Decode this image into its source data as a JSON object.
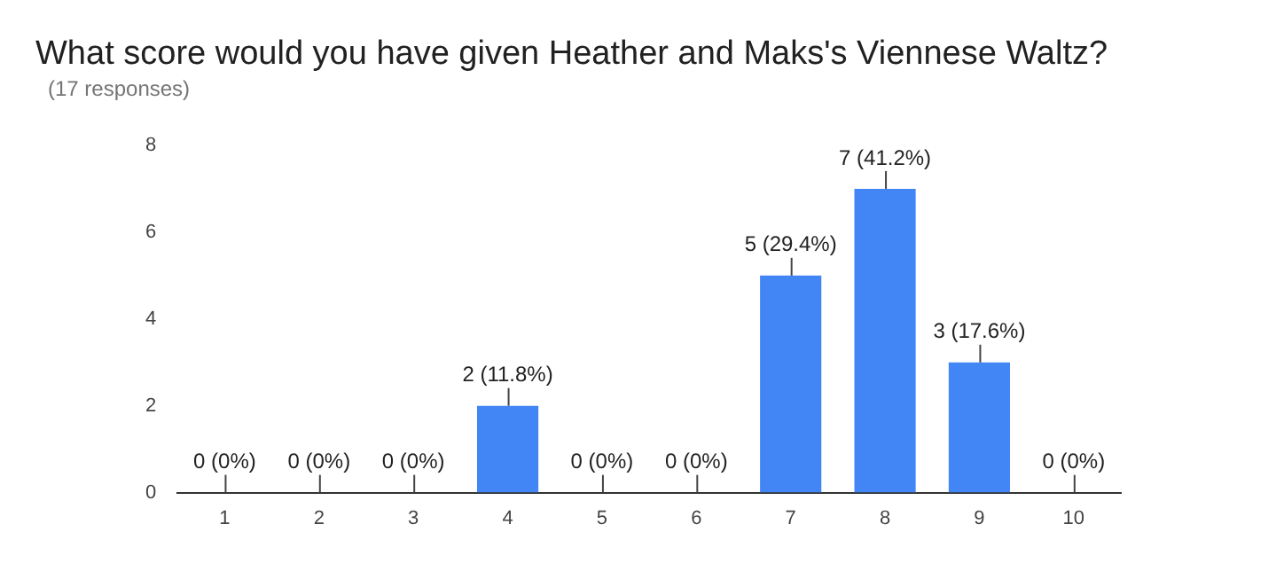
{
  "chart_data": {
    "type": "bar",
    "title": "What score would you have given Heather and Maks's Viennese Waltz?",
    "subtitle": "(17 responses)",
    "categories": [
      "1",
      "2",
      "3",
      "4",
      "5",
      "6",
      "7",
      "8",
      "9",
      "10"
    ],
    "values": [
      0,
      0,
      0,
      2,
      0,
      0,
      5,
      7,
      3,
      0
    ],
    "value_labels": [
      "0 (0%)",
      "0 (0%)",
      "0 (0%)",
      "2 (11.8%)",
      "0 (0%)",
      "0 (0%)",
      "5 (29.4%)",
      "7 (41.2%)",
      "3 (17.6%)",
      "0 (0%)"
    ],
    "color": "#4285f4",
    "ylim": [
      0,
      8
    ],
    "yticks": [
      0,
      2,
      4,
      6,
      8
    ],
    "grid": false,
    "legend": false
  }
}
